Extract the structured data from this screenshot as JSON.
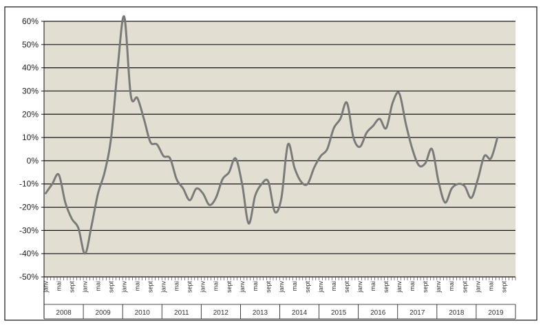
{
  "chart_data": {
    "type": "line",
    "title": "",
    "xlabel": "",
    "ylabel": "",
    "ylim": [
      -50,
      60
    ],
    "y_ticks": [
      60,
      50,
      40,
      30,
      20,
      10,
      0,
      -10,
      -20,
      -30,
      -40,
      -50
    ],
    "y_tick_labels": [
      "60%",
      "50%",
      "40%",
      "30%",
      "20%",
      "10%",
      "0%",
      "-10%",
      "-20%",
      "-30%",
      "-40%",
      "-50%"
    ],
    "grid": "horizontal",
    "month_tick_labels": [
      "janv",
      "mai",
      "sept"
    ],
    "years": [
      "2008",
      "2009",
      "2010",
      "2011",
      "2012",
      "2013",
      "2014",
      "2015",
      "2016",
      "2017",
      "2018",
      "2019"
    ],
    "line_color": "#7a7a7a",
    "background_color": "#e2dfd2",
    "series": [
      {
        "x": [
          "2008-01",
          "2008-03",
          "2008-05",
          "2008-07",
          "2008-09",
          "2008-11",
          "2009-01",
          "2009-03",
          "2009-05",
          "2009-07",
          "2009-09",
          "2009-11",
          "2010-01",
          "2010-03",
          "2010-05",
          "2010-07",
          "2010-09",
          "2010-11",
          "2011-01",
          "2011-03",
          "2011-05",
          "2011-07",
          "2011-09",
          "2011-11",
          "2012-01",
          "2012-03",
          "2012-05",
          "2012-07",
          "2012-09",
          "2012-11",
          "2013-01",
          "2013-03",
          "2013-05",
          "2013-07",
          "2013-09",
          "2013-11",
          "2014-01",
          "2014-03",
          "2014-05",
          "2014-07",
          "2014-09",
          "2014-11",
          "2015-01",
          "2015-03",
          "2015-05",
          "2015-07",
          "2015-09",
          "2015-11",
          "2016-01",
          "2016-03",
          "2016-05",
          "2016-07",
          "2016-09",
          "2016-11",
          "2017-01",
          "2017-03",
          "2017-05",
          "2017-07",
          "2017-09",
          "2017-11",
          "2018-01",
          "2018-03",
          "2018-05",
          "2018-07",
          "2018-09",
          "2018-11",
          "2019-01",
          "2019-03",
          "2019-05",
          "2019-07"
        ],
        "values": [
          -14,
          -10,
          -6,
          -18,
          -25,
          -29,
          -40,
          -28,
          -14,
          -5,
          10,
          40,
          62,
          28,
          27,
          18,
          8,
          7,
          2,
          1,
          -8,
          -12,
          -17,
          -12,
          -14,
          -19,
          -16,
          -8,
          -5,
          1,
          -10,
          -27,
          -15,
          -10,
          -9,
          -22,
          -16,
          7,
          -3,
          -9,
          -10,
          -3,
          2,
          5,
          14,
          18,
          25,
          10,
          6,
          12,
          15,
          18,
          14,
          25,
          29,
          16,
          5,
          -2,
          -1,
          5,
          -9,
          -18,
          -12,
          -10,
          -11,
          -16,
          -8,
          2,
          1,
          10
        ]
      }
    ]
  }
}
